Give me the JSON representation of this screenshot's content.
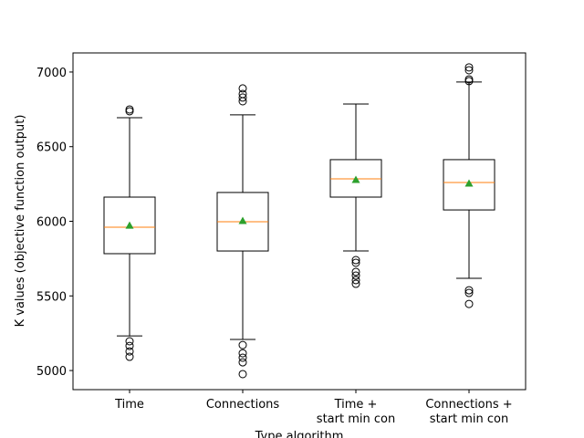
{
  "chart_data": {
    "type": "box",
    "xlabel": "Type algorithm",
    "ylabel": "K values (objective function output)",
    "categories": [
      "Time",
      "Connections",
      "Time +\nstart min con",
      "Connections +\nstart min con"
    ],
    "ylim": [
      4872,
      7128
    ],
    "yticks": [
      5000,
      5500,
      6000,
      6500,
      7000
    ],
    "box_color": "#000000",
    "median_color": "#ff7f0e",
    "mean_color": "#2ca02c",
    "boxes": [
      {
        "whislo": 5232,
        "q1": 5783,
        "med": 5960,
        "q3": 6162,
        "whishi": 6694,
        "mean": 5972,
        "fliers": [
          6749,
          6737,
          5196,
          5165,
          5128,
          5092
        ]
      },
      {
        "whislo": 5208,
        "q1": 5801,
        "med": 5997,
        "q3": 6193,
        "whishi": 6713,
        "mean": 6003,
        "fliers": [
          6890,
          6853,
          6829,
          6804,
          5171,
          5116,
          5086,
          5055,
          4976
        ]
      },
      {
        "whislo": 5801,
        "q1": 6162,
        "med": 6284,
        "q3": 6413,
        "whishi": 6786,
        "mean": 6278,
        "fliers": [
          5740,
          5722,
          5661,
          5636,
          5606,
          5581
        ]
      },
      {
        "whislo": 5618,
        "q1": 6076,
        "med": 6260,
        "q3": 6413,
        "whishi": 6933,
        "mean": 6254,
        "fliers": [
          7031,
          7012,
          6951,
          6939,
          5538,
          5520,
          5446
        ]
      }
    ]
  }
}
